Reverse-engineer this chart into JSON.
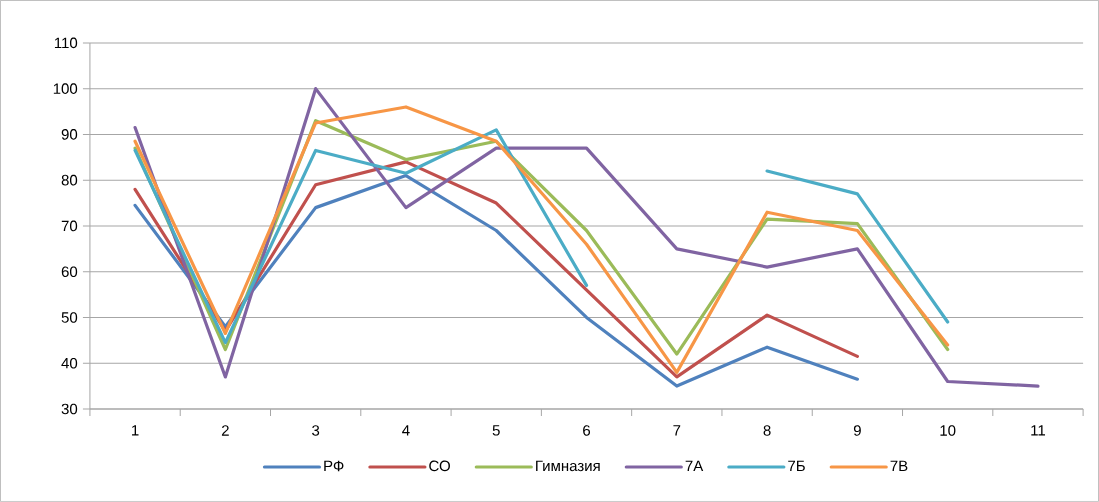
{
  "chart_data": {
    "type": "line",
    "categories": [
      "1",
      "2",
      "3",
      "4",
      "5",
      "6",
      "7",
      "8",
      "9",
      "10",
      "11"
    ],
    "series": [
      {
        "name": "РФ",
        "color": "#4f81bd",
        "values": [
          74.5,
          48,
          74,
          81,
          69,
          50,
          35,
          43.5,
          36.5,
          null,
          null
        ]
      },
      {
        "name": "СО",
        "color": "#c0504d",
        "values": [
          78,
          47,
          79,
          84,
          75,
          56,
          37,
          50.5,
          41.5,
          null,
          null
        ]
      },
      {
        "name": "Гимназия",
        "color": "#9bbb59",
        "values": [
          87,
          43,
          93,
          84.5,
          88.5,
          69,
          42,
          71.5,
          70.5,
          43,
          null
        ]
      },
      {
        "name": "7А",
        "color": "#8064a2",
        "values": [
          91.5,
          37,
          100,
          74,
          87,
          87,
          65,
          61,
          65,
          36,
          35
        ]
      },
      {
        "name": "7Б",
        "color": "#4bacc6",
        "values": [
          86.5,
          44.5,
          86.5,
          81.5,
          91,
          57,
          null,
          82,
          77,
          49,
          null
        ]
      },
      {
        "name": "7В",
        "color": "#f79646",
        "values": [
          88.5,
          46.5,
          92.5,
          96,
          88.5,
          66,
          38,
          73,
          69,
          44,
          null
        ]
      }
    ],
    "ylim": [
      30,
      110
    ],
    "yticks": [
      30,
      40,
      50,
      60,
      70,
      80,
      90,
      100,
      110
    ],
    "grid": "y",
    "legend": "bottom"
  }
}
